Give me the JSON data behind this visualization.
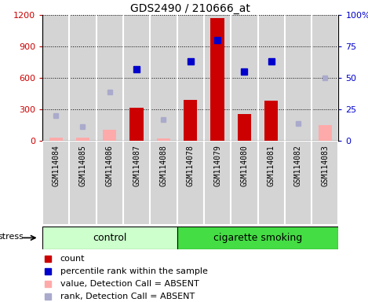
{
  "title": "GDS2490 / 210666_at",
  "samples": [
    "GSM114084",
    "GSM114085",
    "GSM114086",
    "GSM114087",
    "GSM114088",
    "GSM114078",
    "GSM114079",
    "GSM114080",
    "GSM114081",
    "GSM114082",
    "GSM114083"
  ],
  "n_control": 5,
  "n_smoking": 6,
  "count": [
    null,
    null,
    null,
    310,
    null,
    390,
    1175,
    255,
    380,
    null,
    null
  ],
  "percentile_rank": [
    null,
    null,
    null,
    680,
    null,
    760,
    960,
    660,
    760,
    null,
    null
  ],
  "absent_value": [
    30,
    30,
    100,
    null,
    20,
    null,
    null,
    null,
    null,
    null,
    150
  ],
  "absent_rank": [
    240,
    130,
    460,
    null,
    200,
    null,
    null,
    null,
    null,
    160,
    600
  ],
  "ylim_left": [
    0,
    1200
  ],
  "ylim_right": [
    0,
    100
  ],
  "yticks_left": [
    0,
    300,
    600,
    900,
    1200
  ],
  "yticks_right": [
    0,
    25,
    50,
    75,
    100
  ],
  "ytick_labels_right": [
    "0",
    "25",
    "50",
    "75",
    "100%"
  ],
  "color_count": "#cc0000",
  "color_rank": "#0000cc",
  "color_absent_value": "#ffaaaa",
  "color_absent_rank": "#aaaacc",
  "color_control_bg": "#ccffcc",
  "color_smoking_bg": "#44dd44",
  "color_sample_bg": "#d4d4d4",
  "bar_width": 0.5
}
